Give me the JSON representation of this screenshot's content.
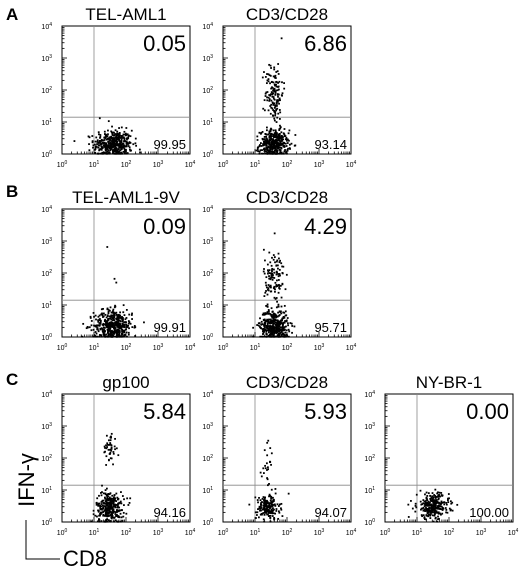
{
  "figure": {
    "ylabel": "IFN-γ",
    "xlabel": "CD8",
    "tick_labels": [
      "10",
      "10",
      "10",
      "10",
      "10"
    ],
    "tick_exponents": [
      "0",
      "1",
      "2",
      "3",
      "4"
    ]
  },
  "chart_data": [
    {
      "type": "scatter",
      "panel_label": "A",
      "title": "TEL-AML1",
      "upper_right_value": "0.05",
      "lower_right_value": "99.95",
      "xlim": [
        1,
        10000
      ],
      "ylim": [
        1,
        10000
      ],
      "x_scale": "log",
      "y_scale": "log",
      "x_gate": 1.0,
      "y_gate": 1.15,
      "clusters": [
        {
          "x_center": 1.6,
          "y_center": 0.3,
          "x_spread": 0.3,
          "y_spread": 0.22,
          "n": 420
        },
        {
          "x_center": 1.6,
          "y_center": 1.2,
          "x_spread": 0.2,
          "y_spread": 0.2,
          "n": 3
        }
      ]
    },
    {
      "type": "scatter",
      "panel_label": "",
      "title": "CD3/CD28",
      "upper_right_value": "6.86",
      "lower_right_value": "93.14",
      "xlim": [
        1,
        10000
      ],
      "ylim": [
        1,
        10000
      ],
      "x_scale": "log",
      "y_scale": "log",
      "x_gate": 1.0,
      "y_gate": 1.15,
      "clusters": [
        {
          "x_center": 1.6,
          "y_center": 0.3,
          "x_spread": 0.22,
          "y_spread": 0.22,
          "n": 380
        },
        {
          "x_center": 1.6,
          "y_center": 1.9,
          "x_spread": 0.14,
          "y_spread": 0.5,
          "n": 140
        }
      ]
    },
    {
      "type": "scatter",
      "panel_label": "B",
      "title": "TEL-AML1-9V",
      "upper_right_value": "0.09",
      "lower_right_value": "99.91",
      "xlim": [
        1,
        10000
      ],
      "ylim": [
        1,
        10000
      ],
      "x_scale": "log",
      "y_scale": "log",
      "x_gate": 1.0,
      "y_gate": 1.15,
      "clusters": [
        {
          "x_center": 1.6,
          "y_center": 0.35,
          "x_spread": 0.3,
          "y_spread": 0.25,
          "n": 440
        },
        {
          "x_center": 1.6,
          "y_center": 1.9,
          "x_spread": 0.15,
          "y_spread": 0.5,
          "n": 4
        }
      ]
    },
    {
      "type": "scatter",
      "panel_label": "",
      "title": "CD3/CD28",
      "upper_right_value": "4.29",
      "lower_right_value": "95.71",
      "xlim": [
        1,
        10000
      ],
      "ylim": [
        1,
        10000
      ],
      "x_scale": "log",
      "y_scale": "log",
      "x_gate": 1.0,
      "y_gate": 1.15,
      "clusters": [
        {
          "x_center": 1.6,
          "y_center": 0.35,
          "x_spread": 0.22,
          "y_spread": 0.25,
          "n": 400
        },
        {
          "x_center": 1.6,
          "y_center": 1.8,
          "x_spread": 0.16,
          "y_spread": 0.5,
          "n": 120
        }
      ]
    },
    {
      "type": "scatter",
      "panel_label": "C",
      "title": "gp100",
      "upper_right_value": "5.84",
      "lower_right_value": "94.16",
      "xlim": [
        1,
        10000
      ],
      "ylim": [
        1,
        10000
      ],
      "x_scale": "log",
      "y_scale": "log",
      "x_gate": 1.0,
      "y_gate": 1.15,
      "clusters": [
        {
          "x_center": 1.5,
          "y_center": 0.45,
          "x_spread": 0.22,
          "y_spread": 0.25,
          "n": 300
        },
        {
          "x_center": 1.5,
          "y_center": 2.3,
          "x_spread": 0.1,
          "y_spread": 0.25,
          "n": 45
        }
      ]
    },
    {
      "type": "scatter",
      "panel_label": "",
      "title": "CD3/CD28",
      "upper_right_value": "5.93",
      "lower_right_value": "94.07",
      "xlim": [
        1,
        10000
      ],
      "ylim": [
        1,
        10000
      ],
      "x_scale": "log",
      "y_scale": "log",
      "x_gate": 1.0,
      "y_gate": 1.15,
      "clusters": [
        {
          "x_center": 1.4,
          "y_center": 0.45,
          "x_spread": 0.18,
          "y_spread": 0.2,
          "n": 180
        },
        {
          "x_center": 1.4,
          "y_center": 1.8,
          "x_spread": 0.1,
          "y_spread": 0.4,
          "n": 25
        }
      ]
    },
    {
      "type": "scatter",
      "panel_label": "",
      "title": "NY-BR-1",
      "upper_right_value": "0.00",
      "lower_right_value": "100.00",
      "xlim": [
        1,
        10000
      ],
      "ylim": [
        1,
        10000
      ],
      "x_scale": "log",
      "y_scale": "log",
      "x_gate": 1.0,
      "y_gate": 1.15,
      "clusters": [
        {
          "x_center": 1.5,
          "y_center": 0.5,
          "x_spread": 0.25,
          "y_spread": 0.2,
          "n": 280
        }
      ]
    }
  ]
}
